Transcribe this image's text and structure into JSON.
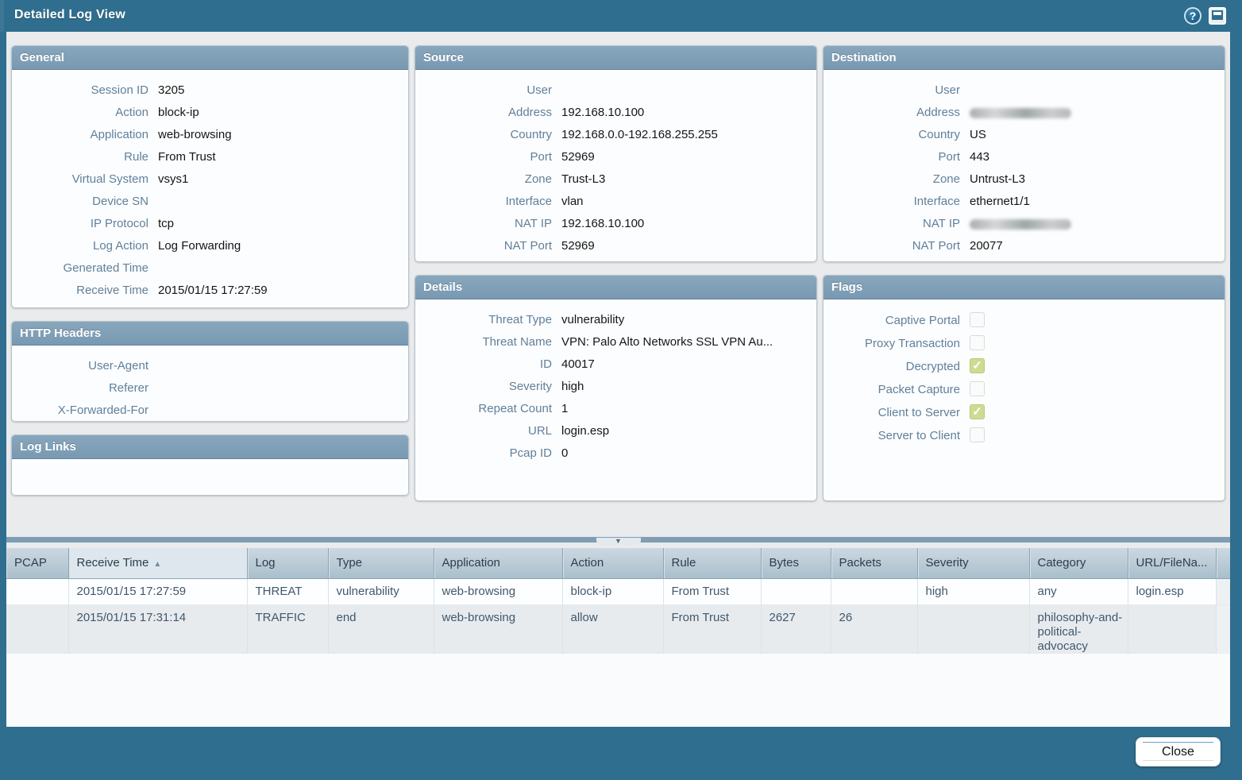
{
  "dialog": {
    "title": "Detailed Log View"
  },
  "icons": {
    "help": "?",
    "sort_asc": "▲",
    "collapse": "▼",
    "check": "✓"
  },
  "colors": {
    "frame_teal": "#2f6e8e",
    "panel_header_blue": "#7d9fb8",
    "content_gray": "#e9ebed",
    "checked_green": "#ccdc92",
    "label_steel_blue": "#60809a"
  },
  "panels": {
    "general": {
      "title": "General",
      "rows": [
        {
          "label": "Session ID",
          "value": "3205"
        },
        {
          "label": "Action",
          "value": "block-ip"
        },
        {
          "label": "Application",
          "value": "web-browsing"
        },
        {
          "label": "Rule",
          "value": "From Trust"
        },
        {
          "label": "Virtual System",
          "value": "vsys1"
        },
        {
          "label": "Device SN",
          "value": ""
        },
        {
          "label": "IP Protocol",
          "value": "tcp"
        },
        {
          "label": "Log Action",
          "value": "Log Forwarding"
        },
        {
          "label": "Generated Time",
          "value": ""
        },
        {
          "label": "Receive Time",
          "value": "2015/01/15 17:27:59"
        }
      ]
    },
    "http_headers": {
      "title": "HTTP Headers",
      "rows": [
        {
          "label": "User-Agent",
          "value": ""
        },
        {
          "label": "Referer",
          "value": ""
        },
        {
          "label": "X-Forwarded-For",
          "value": ""
        }
      ]
    },
    "log_links": {
      "title": "Log Links"
    },
    "source": {
      "title": "Source",
      "rows": [
        {
          "label": "User",
          "value": ""
        },
        {
          "label": "Address",
          "value": "192.168.10.100"
        },
        {
          "label": "Country",
          "value": "192.168.0.0-192.168.255.255"
        },
        {
          "label": "Port",
          "value": "52969"
        },
        {
          "label": "Zone",
          "value": "Trust-L3"
        },
        {
          "label": "Interface",
          "value": "vlan"
        },
        {
          "label": "NAT IP",
          "value": "192.168.10.100"
        },
        {
          "label": "NAT Port",
          "value": "52969"
        }
      ]
    },
    "details": {
      "title": "Details",
      "rows": [
        {
          "label": "Threat Type",
          "value": "vulnerability"
        },
        {
          "label": "Threat Name",
          "value": "VPN: Palo Alto Networks SSL VPN Au..."
        },
        {
          "label": "ID",
          "value": "40017"
        },
        {
          "label": "Severity",
          "value": "high"
        },
        {
          "label": "Repeat Count",
          "value": "1"
        },
        {
          "label": "URL",
          "value": "login.esp"
        },
        {
          "label": "Pcap ID",
          "value": "0"
        }
      ]
    },
    "destination": {
      "title": "Destination",
      "rows": [
        {
          "label": "User",
          "value": "",
          "redacted": false
        },
        {
          "label": "Address",
          "value": "",
          "redacted": true
        },
        {
          "label": "Country",
          "value": "US",
          "redacted": false
        },
        {
          "label": "Port",
          "value": "443",
          "redacted": false
        },
        {
          "label": "Zone",
          "value": "Untrust-L3",
          "redacted": false
        },
        {
          "label": "Interface",
          "value": "ethernet1/1",
          "redacted": false
        },
        {
          "label": "NAT IP",
          "value": "",
          "redacted": true
        },
        {
          "label": "NAT Port",
          "value": "20077",
          "redacted": false
        }
      ]
    },
    "flags": {
      "title": "Flags",
      "items": [
        {
          "label": "Captive Portal",
          "checked": false
        },
        {
          "label": "Proxy Transaction",
          "checked": false
        },
        {
          "label": "Decrypted",
          "checked": true
        },
        {
          "label": "Packet Capture",
          "checked": false
        },
        {
          "label": "Client to Server",
          "checked": true
        },
        {
          "label": "Server to Client",
          "checked": false
        }
      ]
    }
  },
  "table": {
    "columns": [
      "PCAP",
      "Receive Time",
      "Log",
      "Type",
      "Application",
      "Action",
      "Rule",
      "Bytes",
      "Packets",
      "Severity",
      "Category",
      "URL/FileNa..."
    ],
    "sorted_by": "Receive Time",
    "sort_direction": "asc",
    "rows": [
      {
        "cells": [
          "",
          "2015/01/15 17:27:59",
          "THREAT",
          "vulnerability",
          "web-browsing",
          "block-ip",
          "From Trust",
          "",
          "",
          "high",
          "any",
          "login.esp"
        ]
      },
      {
        "cells": [
          "",
          "2015/01/15 17:31:14",
          "TRAFFIC",
          "end",
          "web-browsing",
          "allow",
          "From Trust",
          "2627",
          "26",
          "",
          "philosophy-and-political-advocacy",
          ""
        ]
      }
    ]
  },
  "footer": {
    "close_label": "Close"
  }
}
